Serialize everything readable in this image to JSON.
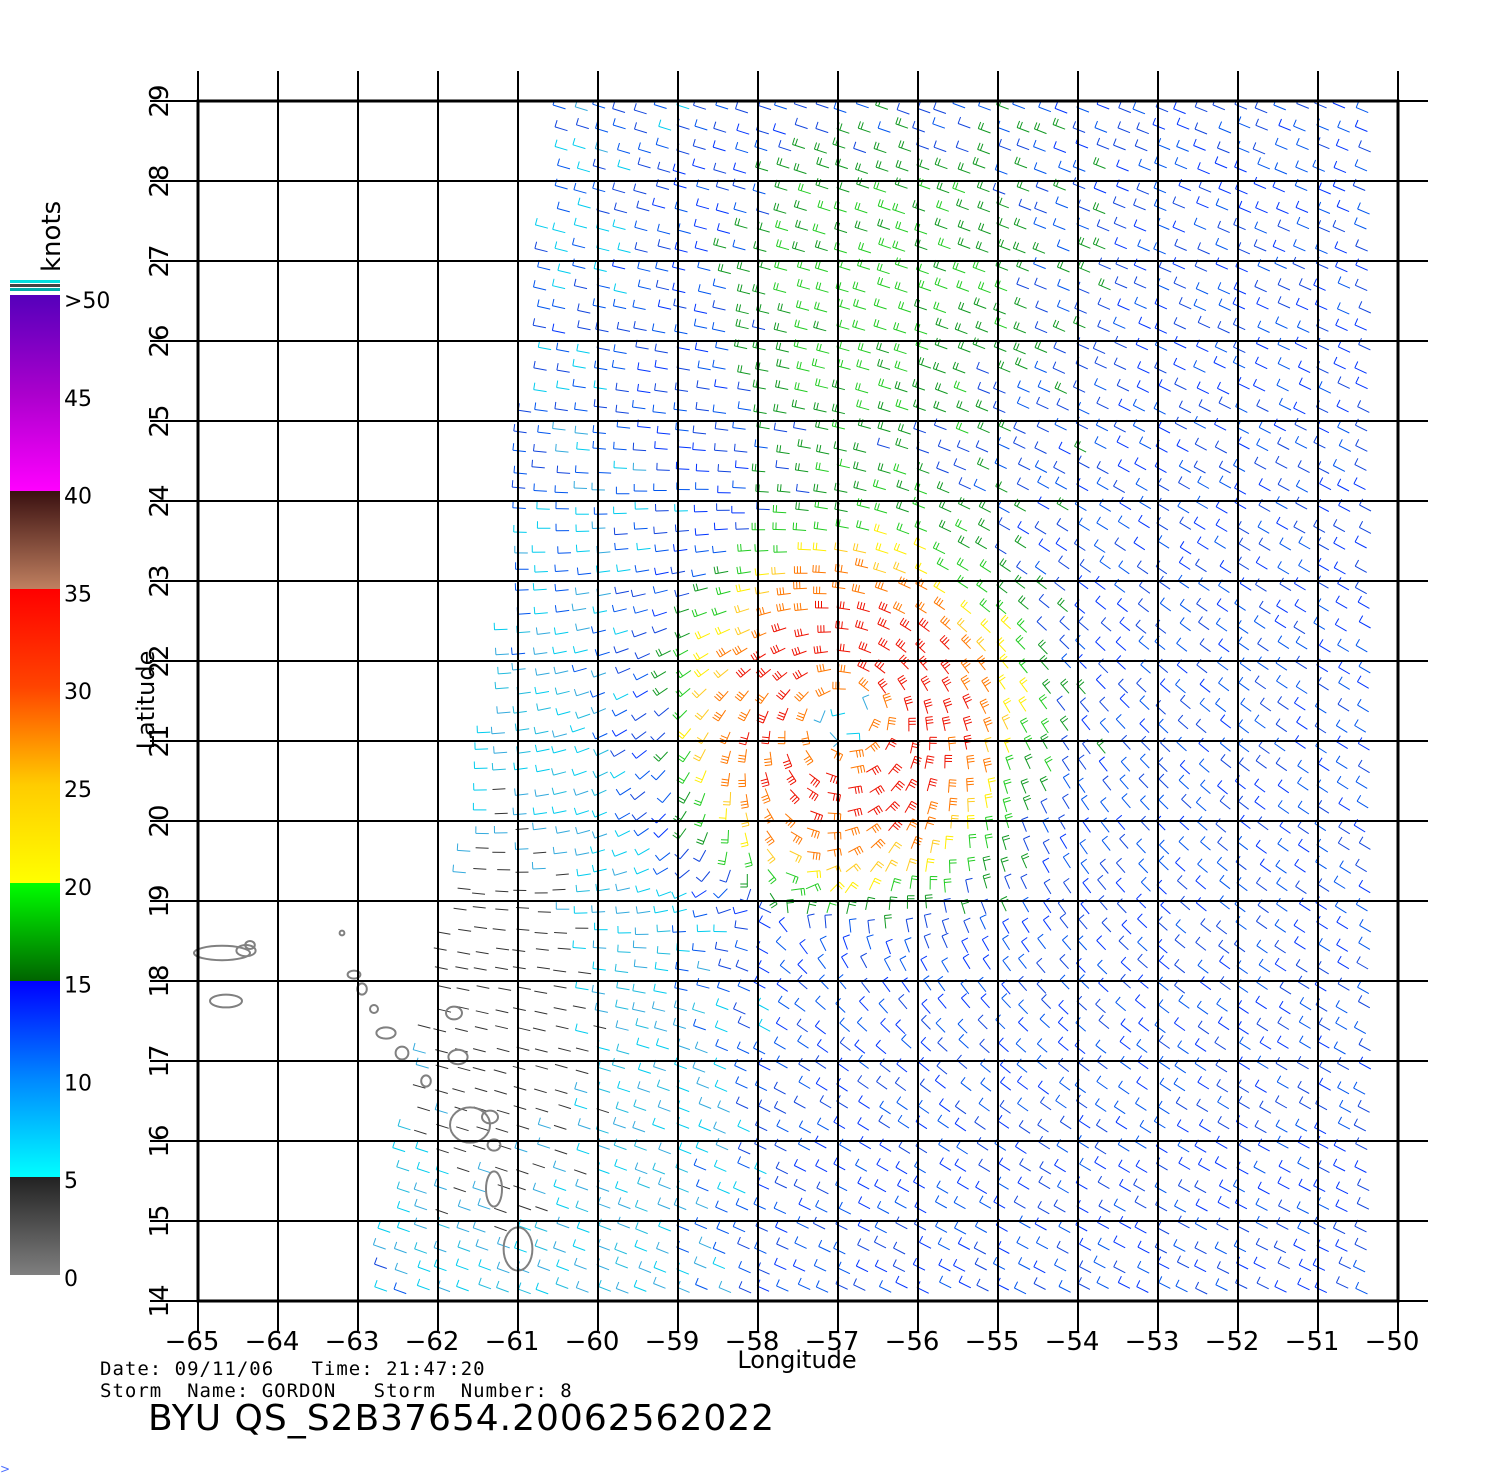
{
  "map": {
    "lon_min": -65,
    "lon_max": -50,
    "lat_min": 14,
    "lat_max": 29,
    "lon_ticks": [
      -65,
      -64,
      -63,
      -62,
      -61,
      -60,
      -59,
      -58,
      -57,
      -56,
      -55,
      -54,
      -53,
      -52,
      -51,
      -50
    ],
    "lat_ticks": [
      14,
      15,
      16,
      17,
      18,
      19,
      20,
      21,
      22,
      23,
      24,
      25,
      26,
      27,
      28,
      29
    ],
    "xlabel": "Longitude",
    "ylabel": "Latitude",
    "center_lon": -56.9,
    "center_lat": 21.3
  },
  "colorbar": {
    "title": "knots",
    "stops": [
      {
        "value": 0,
        "color": "#7f7f7f"
      },
      {
        "value": 5,
        "color": "#222222"
      },
      {
        "value": 5,
        "color": "#00ffff"
      },
      {
        "value": 10,
        "color": "#0088ff"
      },
      {
        "value": 15,
        "color": "#0000ff"
      },
      {
        "value": 15,
        "color": "#006400"
      },
      {
        "value": 20,
        "color": "#00ff00"
      },
      {
        "value": 20,
        "color": "#ffff00"
      },
      {
        "value": 25,
        "color": "#ffcc00"
      },
      {
        "value": 30,
        "color": "#ff4400"
      },
      {
        "value": 35,
        "color": "#ff0000"
      },
      {
        "value": 35,
        "color": "#c08060"
      },
      {
        "value": 40,
        "color": "#3a1010"
      },
      {
        "value": 40,
        "color": "#ff00ff"
      },
      {
        "value": 45,
        "color": "#aa00cc"
      },
      {
        "value": 50,
        "color": "#5500bb"
      }
    ],
    "tick_labels": [
      "0",
      "5",
      "10",
      "15",
      "20",
      "25",
      "30",
      "35",
      "40",
      "45",
      ">50"
    ]
  },
  "info": {
    "line1": "Date: 09/11/06   Time: 21:47:20",
    "line2": "Storm  Name: GORDON   Storm  Number: 8",
    "product": "BYU  QS_S2B37654.20062562022"
  }
}
